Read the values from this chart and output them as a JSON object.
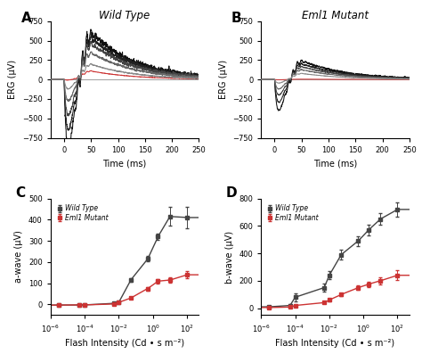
{
  "panel_A_title": "Wild Type",
  "panel_B_title": "Eml1 Mutant",
  "erg_ylim": [
    -750,
    750
  ],
  "erg_yticks": [
    -750,
    -500,
    -250,
    0,
    250,
    500,
    750
  ],
  "erg_xlim": [
    -25,
    250
  ],
  "erg_xticks": [
    0,
    50,
    100,
    150,
    200,
    250
  ],
  "time_label": "Time (ms)",
  "erg_ylabel": "ERG (μV)",
  "flash_x": [
    3e-06,
    5e-05,
    0.0001,
    0.005,
    0.01,
    0.05,
    0.5,
    2.0,
    10.0,
    100.0
  ],
  "awave_wt_y": [
    -3,
    -3,
    -2,
    5,
    10,
    115,
    215,
    320,
    415,
    410
  ],
  "awave_wt_yerr": [
    2,
    2,
    2,
    3,
    5,
    10,
    12,
    15,
    45,
    50
  ],
  "awave_mut_y": [
    -3,
    -2,
    -2,
    2,
    10,
    30,
    75,
    110,
    115,
    140
  ],
  "awave_mut_yerr": [
    2,
    2,
    2,
    2,
    3,
    5,
    8,
    10,
    12,
    18
  ],
  "bwave_wt_y": [
    10,
    20,
    80,
    150,
    240,
    390,
    490,
    570,
    650,
    720
  ],
  "bwave_wt_yerr": [
    5,
    10,
    30,
    30,
    30,
    35,
    35,
    40,
    40,
    50
  ],
  "bwave_mut_y": [
    5,
    8,
    20,
    40,
    60,
    100,
    150,
    175,
    200,
    240
  ],
  "bwave_mut_yerr": [
    3,
    4,
    5,
    6,
    8,
    10,
    15,
    20,
    25,
    35
  ],
  "awave_ylabel": "a-wave (μV)",
  "bwave_ylabel": "b-wave (μV)",
  "flash_xlabel": "Flash Intensity (Cd • s m⁻²)",
  "awave_ylim": [
    -50,
    500
  ],
  "awave_yticks": [
    0,
    100,
    200,
    300,
    400,
    500
  ],
  "bwave_ylim": [
    -50,
    800
  ],
  "bwave_yticks": [
    0,
    200,
    400,
    600,
    800
  ],
  "flash_xlim": [
    1e-06,
    500
  ],
  "wt_color": "#444444",
  "mut_color": "#cc3333",
  "bg_color": "#ffffff",
  "legend_wt": "Wild Type",
  "legend_mut": "Eml1 Mutant"
}
